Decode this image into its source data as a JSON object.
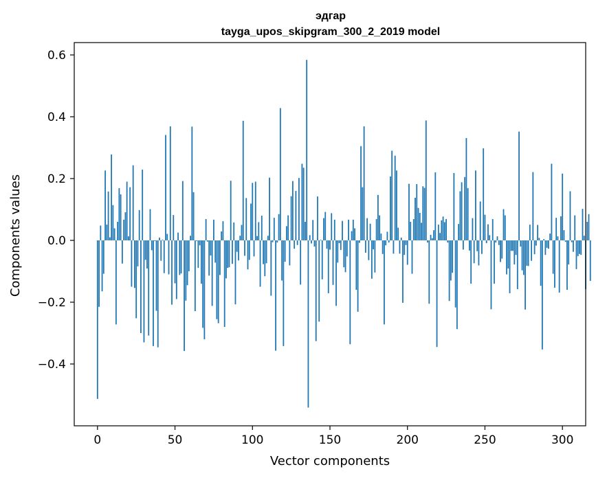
{
  "chart_data": {
    "type": "bar",
    "title": "эдгар",
    "subtitle": "tayga_upos_skipgram_300_2_2019 model",
    "xlabel": "Vector components",
    "ylabel": "Components values",
    "xlim": [
      -15,
      315
    ],
    "ylim": [
      -0.6,
      0.64
    ],
    "xticks": [
      0,
      50,
      100,
      150,
      200,
      250,
      300
    ],
    "yticks": [
      -0.4,
      -0.2,
      0.0,
      0.2,
      0.4,
      0.6
    ],
    "xtick_labels": [
      "0",
      "50",
      "100",
      "150",
      "200",
      "250",
      "300"
    ],
    "ytick_labels": [
      "−0.4",
      "−0.2",
      "0.0",
      "0.2",
      "0.4",
      "0.6"
    ],
    "color": "#1f77b4",
    "values": [
      -0.513,
      -0.215,
      0.048,
      -0.165,
      -0.108,
      0.226,
      0.051,
      0.158,
      0.01,
      0.278,
      0.114,
      0.039,
      -0.272,
      0.06,
      0.169,
      0.149,
      -0.075,
      0.067,
      0.091,
      0.19,
      0.013,
      0.172,
      -0.15,
      0.243,
      -0.154,
      -0.252,
      -0.084,
      0.098,
      -0.3,
      0.229,
      -0.33,
      -0.063,
      -0.091,
      -0.308,
      0.101,
      -0.032,
      -0.342,
      -0.002,
      -0.228,
      -0.346,
      0.009,
      -0.066,
      0.002,
      -0.106,
      0.341,
      0.021,
      -0.11,
      0.369,
      -0.208,
      0.082,
      -0.139,
      -0.19,
      0.025,
      -0.112,
      -0.107,
      0.192,
      -0.358,
      -0.195,
      -0.145,
      -0.1,
      0.015,
      0.368,
      0.156,
      -0.229,
      -0.002,
      -0.089,
      -0.016,
      -0.14,
      -0.283,
      -0.32,
      0.069,
      -0.004,
      -0.114,
      -0.049,
      -0.212,
      0.067,
      -0.072,
      -0.255,
      -0.268,
      -0.112,
      0.029,
      0.062,
      -0.28,
      -0.123,
      -0.089,
      -0.087,
      0.193,
      -0.076,
      0.058,
      -0.207,
      -0.037,
      -0.065,
      0.015,
      0.05,
      0.387,
      -0.05,
      0.137,
      -0.094,
      -0.063,
      0.119,
      0.186,
      -0.052,
      0.19,
      0.014,
      0.059,
      -0.15,
      0.08,
      -0.077,
      -0.116,
      -0.074,
      0.015,
      0.203,
      -0.179,
      -0.006,
      0.073,
      -0.357,
      -0.007,
      0.085,
      0.428,
      -0.13,
      -0.342,
      -0.069,
      0.046,
      0.081,
      -0.081,
      0.143,
      0.192,
      -0.027,
      0.16,
      -0.015,
      0.202,
      -0.143,
      0.248,
      0.235,
      0.06,
      0.584,
      -0.541,
      0.017,
      -0.01,
      0.066,
      -0.02,
      -0.326,
      0.142,
      -0.263,
      0.002,
      -0.126,
      0.072,
      0.092,
      -0.027,
      -0.171,
      -0.03,
      0.088,
      -0.144,
      0.067,
      -0.212,
      -0.072,
      -0.009,
      -0.031,
      0.063,
      -0.087,
      -0.103,
      -0.052,
      0.067,
      -0.336,
      0.03,
      0.067,
      0.039,
      -0.16,
      -0.231,
      -0.008,
      0.305,
      0.172,
      0.369,
      -0.04,
      0.072,
      -0.064,
      0.054,
      -0.124,
      -0.029,
      -0.104,
      0.069,
      0.147,
      0.081,
      0.022,
      -0.044,
      -0.272,
      -0.016,
      0.028,
      -0.007,
      0.207,
      0.29,
      -0.043,
      0.274,
      0.226,
      0.041,
      -0.043,
      0.009,
      -0.202,
      -0.047,
      -0.015,
      -0.079,
      0.183,
      0.06,
      -0.108,
      0.069,
      0.138,
      0.182,
      0.105,
      0.089,
      0.057,
      0.175,
      0.17,
      0.388,
      -0.007,
      -0.205,
      0.018,
      0.007,
      0.033,
      0.22,
      -0.345,
      0.051,
      0.024,
      0.065,
      0.077,
      0.059,
      0.069,
      -0.007,
      -0.196,
      -0.13,
      -0.105,
      0.218,
      -0.217,
      -0.287,
      0.053,
      0.159,
      0.188,
      -0.03,
      0.205,
      0.331,
      0.169,
      -0.033,
      -0.14,
      0.072,
      -0.074,
      0.226,
      -0.035,
      -0.081,
      0.126,
      -0.044,
      0.298,
      0.083,
      -0.009,
      0.052,
      0.017,
      -0.223,
      0.069,
      -0.14,
      -0.007,
      0.013,
      -0.015,
      -0.07,
      -0.059,
      0.101,
      0.081,
      -0.11,
      -0.091,
      -0.171,
      -0.034,
      -0.034,
      -0.078,
      -0.047,
      -0.158,
      0.352,
      -0.02,
      -0.097,
      -0.112,
      -0.224,
      -0.082,
      -0.083,
      0.051,
      -0.066,
      0.221,
      -0.045,
      -0.017,
      0.05,
      0.008,
      -0.147,
      -0.353,
      0.004,
      -0.047,
      -0.024,
      -0.027,
      0.022,
      0.248,
      -0.108,
      -0.153,
      0.073,
      0.013,
      -0.169,
      0.078,
      0.216,
      0.033,
      -0.005,
      -0.16,
      -0.078,
      0.159,
      -0.006,
      -0.037,
      0.081,
      -0.093,
      -0.051,
      -0.044,
      -0.047,
      0.102,
      0.015,
      -0.158,
      0.06,
      0.085,
      -0.131
    ]
  }
}
